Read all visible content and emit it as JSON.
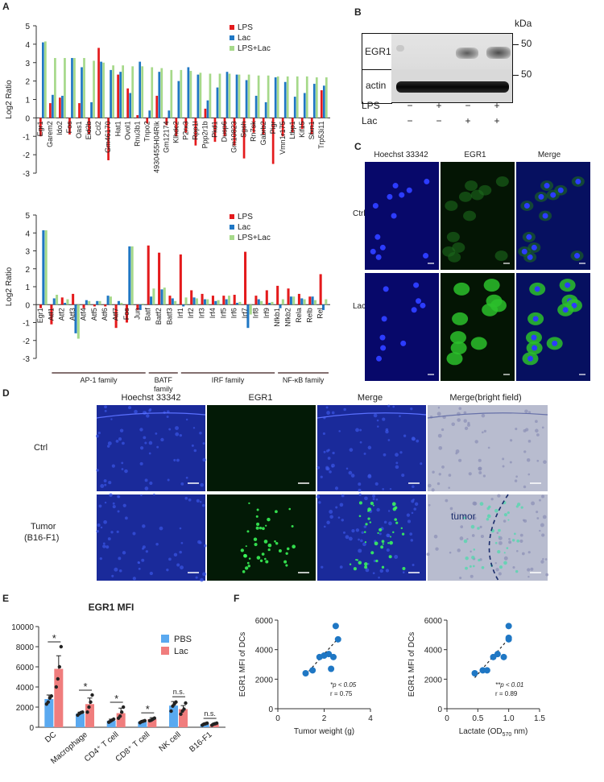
{
  "panels": {
    "A": "A",
    "B": "B",
    "C": "C",
    "D": "D",
    "E": "E",
    "F": "F"
  },
  "chart_data": [
    {
      "id": "A-top",
      "type": "bar",
      "ylabel": "Log2 Ratio",
      "ylim": [
        -3,
        5
      ],
      "yticks": [
        -3,
        -2,
        -1,
        0,
        1,
        2,
        3,
        4,
        5
      ],
      "categories": [
        "Egr1",
        "Garem2",
        "Ido2",
        "Fos",
        "Oas1",
        "Eid2b",
        "Ccl2",
        "Gm46170",
        "Hat1",
        "Ovol1",
        "Rnu3b1",
        "Tnpo2",
        "4930455H04Rik",
        "Gm12174",
        "Klhdc2",
        "P2rx3",
        "Rpp1l",
        "Ppp2r1b",
        "Pkd1",
        "Dusp6",
        "Gm10823",
        "Sgsh",
        "Rn7sk",
        "Gabrb2",
        "Pigr",
        "Vmn1r175",
        "Ltbp1",
        "Kif15",
        "Sfxn1",
        "Trp53i11"
      ],
      "series": [
        {
          "name": "LPS",
          "color": "#e41a1c",
          "values": [
            -1.0,
            0.8,
            1.1,
            -0.9,
            0.8,
            -0.9,
            3.8,
            -2.3,
            2.35,
            1.6,
            0.15,
            -0.3,
            1.2,
            -0.4,
            -1.0,
            -0.8,
            -1.5,
            0.5,
            -1.3,
            -1.0,
            -1.5,
            -2.2,
            -0.8,
            -0.9,
            -2.5,
            -1.0,
            -0.8,
            -0.6,
            -0.9,
            1.5
          ]
        },
        {
          "name": "Lac",
          "color": "#1f77c4",
          "values": [
            4.1,
            1.25,
            1.2,
            3.25,
            2.75,
            0.85,
            3.05,
            2.6,
            2.5,
            1.35,
            3.05,
            0.4,
            2.5,
            0.4,
            2.0,
            2.75,
            2.35,
            0.95,
            1.65,
            2.5,
            2.35,
            2.05,
            1.2,
            0.85,
            2.2,
            1.95,
            1.15,
            1.35,
            1.85,
            1.75
          ]
        },
        {
          "name": "LPS+Lac",
          "color": "#a6d98a",
          "values": [
            4.15,
            3.25,
            3.25,
            3.25,
            3.25,
            3.1,
            3.0,
            2.85,
            2.85,
            2.8,
            2.8,
            2.75,
            2.7,
            2.6,
            2.6,
            2.55,
            2.45,
            2.4,
            2.4,
            2.4,
            2.35,
            2.35,
            2.3,
            2.3,
            2.25,
            2.25,
            2.25,
            2.25,
            2.2,
            2.2
          ]
        }
      ],
      "legend": [
        "LPS",
        "Lac",
        "LPS+Lac"
      ]
    },
    {
      "id": "A-bottom",
      "type": "bar",
      "ylabel": "Log2 Ratio",
      "ylim": [
        -3,
        5
      ],
      "yticks": [
        -3,
        -2,
        -1,
        0,
        1,
        2,
        3,
        4,
        5
      ],
      "categories": [
        "Egr1",
        "Atf1",
        "Atf2",
        "Atf3",
        "Atf4",
        "Atf5",
        "Atf6",
        "Atf7",
        "Fos",
        "Jun",
        "Batf",
        "Batf2",
        "Batf3",
        "Irf1",
        "Irf2",
        "Irf3",
        "Irf4",
        "Irf5",
        "Irf6",
        "Irf7",
        "Irf8",
        "Irf9",
        "Nfkb1",
        "Nfkb2",
        "Rela",
        "Relb",
        "Rel"
      ],
      "series": [
        {
          "name": "LPS",
          "color": "#e41a1c",
          "values": [
            -0.2,
            -1.1,
            0.4,
            0.6,
            -0.2,
            -0.1,
            -0.1,
            -1.3,
            -1.0,
            -0.3,
            3.3,
            2.9,
            0.5,
            2.8,
            0.8,
            0.6,
            0.5,
            0.5,
            0.55,
            2.95,
            0.5,
            0.8,
            1.05,
            0.9,
            0.6,
            0.45,
            1.7
          ]
        },
        {
          "name": "Lac",
          "color": "#1f77c4",
          "values": [
            4.15,
            0.35,
            0.1,
            -1.6,
            0.25,
            0.2,
            0.5,
            0.2,
            3.25,
            -0.3,
            0.45,
            0.85,
            0.35,
            -0.1,
            0.4,
            0.3,
            0.2,
            0.3,
            0.1,
            -1.3,
            0.3,
            0.1,
            -0.2,
            0.45,
            0.35,
            0.45,
            -0.3
          ]
        },
        {
          "name": "LPS+Lac",
          "color": "#a6d98a",
          "values": [
            4.15,
            0.55,
            0.3,
            -1.9,
            0.2,
            0.2,
            0.45,
            0.1,
            3.25,
            0.05,
            0.9,
            0.95,
            0.2,
            0.4,
            0.35,
            0.3,
            0.25,
            0.5,
            0.15,
            -0.55,
            0.2,
            0.15,
            0.3,
            0.45,
            0.3,
            0.25,
            0.3
          ]
        }
      ],
      "legend": [
        "LPS",
        "Lac",
        "LPS+Lac"
      ],
      "groups": [
        {
          "label": "AP-1 family"
        },
        {
          "label": "BATF family"
        },
        {
          "label": "IRF family"
        },
        {
          "label": "NF-κB family"
        }
      ]
    },
    {
      "id": "E",
      "type": "bar",
      "title": "EGR1 MFI",
      "ylim": [
        0,
        10000
      ],
      "yticks": [
        0,
        2000,
        4000,
        6000,
        8000,
        10000
      ],
      "categories": [
        "DC",
        "Macrophage",
        "CD4⁺ T cell",
        "CD8⁺ T cell",
        "NK cell",
        "B16-F1"
      ],
      "series": [
        {
          "name": "PBS",
          "color": "#5aa9f0",
          "values": [
            2800,
            1350,
            650,
            550,
            2150,
            300
          ],
          "err": [
            400,
            150,
            150,
            80,
            400,
            80
          ],
          "points": [
            [
              2300,
              2500,
              2900,
              3100
            ],
            [
              1200,
              1350,
              1450,
              1500
            ],
            [
              500,
              600,
              700,
              800
            ],
            [
              450,
              550,
              600,
              650
            ],
            [
              1600,
              2100,
              2300,
              2500
            ],
            [
              200,
              300,
              350,
              400
            ]
          ]
        },
        {
          "name": "Lac",
          "color": "#f07d7d",
          "values": [
            5800,
            2300,
            1400,
            800,
            1800,
            300
          ],
          "err": [
            1300,
            600,
            500,
            150,
            350,
            80
          ],
          "points": [
            [
              4000,
              4800,
              6000,
              8000
            ],
            [
              1500,
              2000,
              2500,
              3200
            ],
            [
              900,
              1100,
              1500,
              2000
            ],
            [
              650,
              700,
              800,
              900
            ],
            [
              1300,
              1600,
              1800,
              2400
            ],
            [
              200,
              300,
              350,
              400
            ]
          ]
        }
      ],
      "significance": [
        "*",
        "*",
        "*",
        "*",
        "n.s.",
        "n.s."
      ],
      "legend": [
        "PBS",
        "Lac"
      ]
    },
    {
      "id": "F-left",
      "type": "scatter",
      "xlabel": "Tumor weight (g)",
      "ylabel": "EGR1 MFI of DCs",
      "xlim": [
        0,
        4
      ],
      "ylim": [
        0,
        6000
      ],
      "xticks": [
        0,
        2,
        4
      ],
      "yticks": [
        0,
        2000,
        4000,
        6000
      ],
      "points": [
        [
          1.2,
          2400
        ],
        [
          1.5,
          2600
        ],
        [
          1.8,
          3500
        ],
        [
          2.0,
          3600
        ],
        [
          2.2,
          3700
        ],
        [
          2.3,
          2700
        ],
        [
          2.4,
          3500
        ],
        [
          2.5,
          5600
        ],
        [
          2.6,
          4700
        ]
      ],
      "trend": [
        [
          1.2,
          2300
        ],
        [
          2.6,
          4750
        ]
      ],
      "annotation": "*p < 0.05",
      "r": "r = 0.75"
    },
    {
      "id": "F-right",
      "type": "scatter",
      "xlabel": "Lactate (OD570 nm)",
      "ylabel": "EGR1 MFI of DCs",
      "xlim": [
        0,
        1.5
      ],
      "ylim": [
        0,
        6000
      ],
      "xticks": [
        0,
        0.5,
        1.0,
        1.5
      ],
      "yticks": [
        0,
        2000,
        4000,
        6000
      ],
      "points": [
        [
          0.45,
          2400
        ],
        [
          0.58,
          2600
        ],
        [
          0.65,
          2600
        ],
        [
          0.75,
          3500
        ],
        [
          0.82,
          3700
        ],
        [
          0.92,
          3500
        ],
        [
          1.0,
          4700
        ],
        [
          1.0,
          5600
        ],
        [
          1.0,
          4800
        ]
      ],
      "trend": [
        [
          0.45,
          2100
        ],
        [
          1.0,
          4750
        ]
      ],
      "annotation": "**p < 0.01",
      "r": "r = 0.89"
    }
  ],
  "panel_b": {
    "kda": "kDa",
    "row1": "EGR1",
    "row2": "actin",
    "marker1": "50",
    "marker2": "50",
    "cond1": "LPS",
    "cond2": "Lac",
    "lps": [
      "−",
      "+",
      "−",
      "+"
    ],
    "lac": [
      "−",
      "−",
      "+",
      "+"
    ]
  },
  "panel_c": {
    "col1": "Hoechst 33342",
    "col2": "EGR1",
    "col3": "Merge",
    "row1": "Ctrl",
    "row2": "Lac"
  },
  "panel_d": {
    "col1": "Hoechst 33342",
    "col2": "EGR1",
    "col3": "Merge",
    "col4": "Merge(bright field)",
    "row1": "Ctrl",
    "row2a": "Tumor",
    "row2b": "(B16-F1)",
    "tumor_label": "tumor"
  },
  "colors": {
    "lps": "#e41a1c",
    "lac": "#1f77c4",
    "lpslac": "#a6d98a",
    "pbs": "#5aa9f0",
    "lac_e": "#f07d7d",
    "dots_f": "#1f77c4"
  }
}
